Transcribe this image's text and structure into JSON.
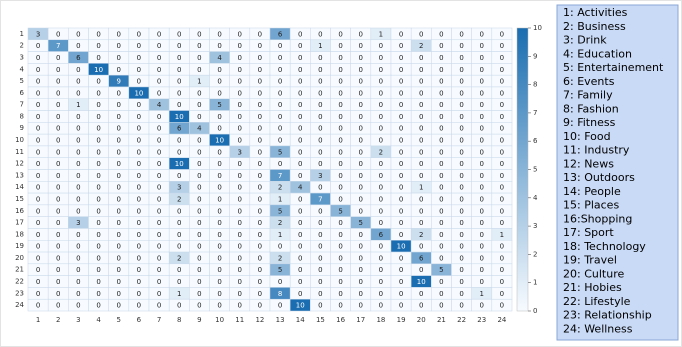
{
  "chart_data": {
    "type": "heatmap",
    "x_categories": [
      1,
      2,
      3,
      4,
      5,
      6,
      7,
      8,
      9,
      10,
      11,
      12,
      13,
      14,
      15,
      16,
      17,
      18,
      19,
      20,
      21,
      22,
      23,
      24
    ],
    "y_categories": [
      1,
      2,
      3,
      4,
      5,
      6,
      7,
      8,
      9,
      10,
      11,
      12,
      13,
      14,
      15,
      16,
      17,
      18,
      19,
      20,
      21,
      22,
      23,
      24
    ],
    "values": [
      [
        3,
        0,
        0,
        0,
        0,
        0,
        0,
        0,
        0,
        0,
        0,
        0,
        6,
        0,
        0,
        0,
        0,
        1,
        0,
        0,
        0,
        0,
        0,
        0
      ],
      [
        0,
        7,
        0,
        0,
        0,
        0,
        0,
        0,
        0,
        0,
        0,
        0,
        0,
        0,
        1,
        0,
        0,
        0,
        0,
        2,
        0,
        0,
        0,
        0
      ],
      [
        0,
        0,
        6,
        0,
        0,
        0,
        0,
        0,
        0,
        4,
        0,
        0,
        0,
        0,
        0,
        0,
        0,
        0,
        0,
        0,
        0,
        0,
        0,
        0
      ],
      [
        0,
        0,
        0,
        10,
        0,
        0,
        0,
        0,
        0,
        0,
        0,
        0,
        0,
        0,
        0,
        0,
        0,
        0,
        0,
        0,
        0,
        0,
        0,
        0
      ],
      [
        0,
        0,
        0,
        0,
        9,
        0,
        0,
        0,
        1,
        0,
        0,
        0,
        0,
        0,
        0,
        0,
        0,
        0,
        0,
        0,
        0,
        0,
        0,
        0
      ],
      [
        0,
        0,
        0,
        0,
        0,
        10,
        0,
        0,
        0,
        0,
        0,
        0,
        0,
        0,
        0,
        0,
        0,
        0,
        0,
        0,
        0,
        0,
        0,
        0
      ],
      [
        0,
        0,
        1,
        0,
        0,
        0,
        4,
        0,
        0,
        5,
        0,
        0,
        0,
        0,
        0,
        0,
        0,
        0,
        0,
        0,
        0,
        0,
        0,
        0
      ],
      [
        0,
        0,
        0,
        0,
        0,
        0,
        0,
        10,
        0,
        0,
        0,
        0,
        0,
        0,
        0,
        0,
        0,
        0,
        0,
        0,
        0,
        0,
        0,
        0
      ],
      [
        0,
        0,
        0,
        0,
        0,
        0,
        0,
        6,
        4,
        0,
        0,
        0,
        0,
        0,
        0,
        0,
        0,
        0,
        0,
        0,
        0,
        0,
        0,
        0
      ],
      [
        0,
        0,
        0,
        0,
        0,
        0,
        0,
        0,
        0,
        10,
        0,
        0,
        0,
        0,
        0,
        0,
        0,
        0,
        0,
        0,
        0,
        0,
        0,
        0
      ],
      [
        0,
        0,
        0,
        0,
        0,
        0,
        0,
        0,
        0,
        0,
        3,
        0,
        5,
        0,
        0,
        0,
        0,
        2,
        0,
        0,
        0,
        0,
        0,
        0
      ],
      [
        0,
        0,
        0,
        0,
        0,
        0,
        0,
        10,
        0,
        0,
        0,
        0,
        0,
        0,
        0,
        0,
        0,
        0,
        0,
        0,
        0,
        0,
        0,
        0
      ],
      [
        0,
        0,
        0,
        0,
        0,
        0,
        0,
        0,
        0,
        0,
        0,
        0,
        7,
        0,
        3,
        0,
        0,
        0,
        0,
        0,
        0,
        0,
        0,
        0
      ],
      [
        0,
        0,
        0,
        0,
        0,
        0,
        0,
        3,
        0,
        0,
        0,
        0,
        2,
        4,
        0,
        0,
        0,
        0,
        0,
        1,
        0,
        0,
        0,
        0
      ],
      [
        0,
        0,
        0,
        0,
        0,
        0,
        0,
        2,
        0,
        0,
        0,
        0,
        1,
        0,
        7,
        0,
        0,
        0,
        0,
        0,
        0,
        0,
        0,
        0
      ],
      [
        0,
        0,
        0,
        0,
        0,
        0,
        0,
        0,
        0,
        0,
        0,
        0,
        5,
        0,
        0,
        5,
        0,
        0,
        0,
        0,
        0,
        0,
        0,
        0
      ],
      [
        0,
        0,
        3,
        0,
        0,
        0,
        0,
        0,
        0,
        0,
        0,
        0,
        2,
        0,
        0,
        0,
        5,
        0,
        0,
        0,
        0,
        0,
        0,
        0
      ],
      [
        0,
        0,
        0,
        0,
        0,
        0,
        0,
        0,
        0,
        0,
        0,
        0,
        1,
        0,
        0,
        0,
        0,
        6,
        0,
        2,
        0,
        0,
        0,
        1
      ],
      [
        0,
        0,
        0,
        0,
        0,
        0,
        0,
        0,
        0,
        0,
        0,
        0,
        0,
        0,
        0,
        0,
        0,
        0,
        10,
        0,
        0,
        0,
        0,
        0
      ],
      [
        0,
        0,
        0,
        0,
        0,
        0,
        0,
        2,
        0,
        0,
        0,
        0,
        2,
        0,
        0,
        0,
        0,
        0,
        0,
        6,
        0,
        0,
        0,
        0
      ],
      [
        0,
        0,
        0,
        0,
        0,
        0,
        0,
        0,
        0,
        0,
        0,
        0,
        5,
        0,
        0,
        0,
        0,
        0,
        0,
        0,
        5,
        0,
        0,
        0
      ],
      [
        0,
        0,
        0,
        0,
        0,
        0,
        0,
        0,
        0,
        0,
        0,
        0,
        0,
        0,
        0,
        0,
        0,
        0,
        0,
        10,
        0,
        0,
        0,
        0
      ],
      [
        0,
        0,
        0,
        0,
        0,
        0,
        0,
        1,
        0,
        0,
        0,
        0,
        8,
        0,
        0,
        0,
        0,
        0,
        0,
        0,
        0,
        0,
        1,
        0
      ],
      [
        0,
        0,
        0,
        0,
        0,
        0,
        0,
        0,
        0,
        0,
        0,
        0,
        0,
        10,
        0,
        0,
        0,
        0,
        0,
        0,
        0,
        0,
        0,
        0
      ]
    ],
    "clim": [
      0,
      10
    ],
    "colorbar_ticks": [
      0,
      1,
      2,
      3,
      4,
      5,
      6,
      7,
      8,
      9,
      10
    ],
    "colormap": [
      "#f7fbff",
      "#1a6db0"
    ],
    "class_labels": [
      "1: Activities",
      "2: Business",
      "3: Drink",
      "4: Education",
      "5: Entertainement",
      "6: Events",
      "7: Family",
      "8: Fashion",
      "9: Fitness",
      "10: Food",
      "11: Industry",
      "12: News",
      "13: Outdoors",
      "14: People",
      "15: Places",
      "16:Shopping",
      "17: Sport",
      "18: Technology",
      "19: Travel",
      "20: Culture",
      "21: Hobies",
      "22: Lifestyle",
      "23: Relationship",
      "24: Wellness"
    ]
  }
}
